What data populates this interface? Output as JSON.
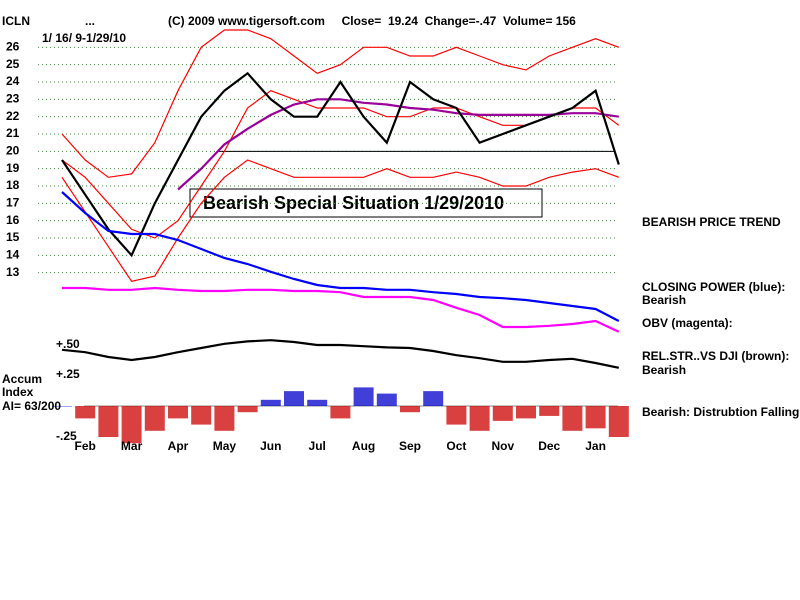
{
  "header": {
    "symbol": "ICLN",
    "dots": "...",
    "info": "(C) 2009 www.tigersoft.com     Close=  19.24  Change=-.47  Volume= 156",
    "date_range": "1/ 16/ 9-1/29/10"
  },
  "chart_data": [
    {
      "type": "line",
      "series": [
        {
          "color": "#ff0000",
          "values": [
            21,
            19.5,
            18.5,
            18.7,
            20.5,
            23.5,
            26,
            27,
            27,
            26.5,
            25.5,
            24.5,
            25,
            26,
            26,
            25.5,
            25.5,
            26,
            25.5,
            25,
            24.7,
            25.5,
            26,
            26.5,
            26
          ]
        },
        {
          "color": "#ff0000",
          "values": [
            18.5,
            16.5,
            14.5,
            12.5,
            12.8,
            15,
            17,
            18.5,
            19.5,
            19,
            18.5,
            18.5,
            18.5,
            18.5,
            19,
            18.5,
            18.5,
            18.8,
            18.5,
            18,
            18,
            18.5,
            18.8,
            19,
            18.5
          ]
        },
        {
          "color": "#ff0000",
          "values": [
            19.5,
            18.5,
            17,
            15.5,
            15,
            16,
            18,
            20,
            22.5,
            23.5,
            23,
            22.5,
            22.5,
            22.5,
            22,
            22,
            22.5,
            22.5,
            22,
            21.5,
            21.5,
            22,
            22.5,
            22.5,
            21.5
          ]
        },
        {
          "color": "#990099",
          "values": [
            null,
            null,
            null,
            null,
            null,
            17.8,
            19,
            20.4,
            21.3,
            22.1,
            22.7,
            23,
            23,
            22.8,
            22.7,
            22.5,
            22.4,
            22.2,
            22.1,
            22.1,
            22.1,
            22.1,
            22.2,
            22.2,
            22
          ]
        },
        {
          "color": "#000000",
          "values": [
            19.5,
            17.5,
            15.5,
            14,
            17,
            19.5,
            22,
            23.5,
            24.5,
            23,
            22,
            22,
            24,
            22,
            20.5,
            24,
            23,
            22.5,
            20.5,
            21,
            21.5,
            22,
            22.5,
            23.5,
            19.24
          ]
        }
      ],
      "ylim": [
        12,
        27
      ],
      "yticks": [
        13,
        14,
        15,
        16,
        17,
        18,
        19,
        20,
        21,
        22,
        23,
        24,
        25,
        26
      ],
      "grid": true,
      "support": 20,
      "annotation": "Bearish Special Situation 1/29/2010",
      "note": "BEARISH PRICE TREND"
    },
    {
      "type": "line",
      "series": [
        {
          "color": "#0000ff",
          "values": [
            3.05,
            2.7,
            2.4,
            2.35,
            2.35,
            2.25,
            2.1,
            1.95,
            1.85,
            1.72,
            1.6,
            1.5,
            1.45,
            1.45,
            1.42,
            1.42,
            1.38,
            1.35,
            1.3,
            1.28,
            1.25,
            1.2,
            1.15,
            1.1,
            0.9
          ]
        },
        {
          "color": "#ff00ff",
          "values": [
            1.45,
            1.45,
            1.42,
            1.42,
            1.45,
            1.42,
            1.4,
            1.4,
            1.42,
            1.42,
            1.4,
            1.4,
            1.38,
            1.3,
            1.3,
            1.3,
            1.25,
            1.12,
            1.0,
            0.8,
            0.8,
            0.82,
            0.85,
            0.9,
            0.72
          ]
        },
        {
          "color": "#000000",
          "values": [
            0.42,
            0.38,
            0.3,
            0.25,
            0.3,
            0.38,
            0.45,
            0.52,
            0.56,
            0.58,
            0.55,
            0.5,
            0.5,
            0.48,
            0.46,
            0.45,
            0.4,
            0.33,
            0.28,
            0.22,
            0.22,
            0.25,
            0.27,
            0.2,
            0.12
          ]
        }
      ],
      "ylim": [
        0,
        3.5
      ],
      "yticks": [
        {
          "value": 0.5,
          "label": "+.50"
        }
      ],
      "notes": [
        "CLOSING POWER (blue):",
        "Bearish",
        "OBV (magenta):",
        "REL.STR..VS DJI (brown):",
        "Bearish"
      ]
    },
    {
      "type": "bar",
      "categories": [
        null,
        "Feb",
        null,
        "Mar",
        null,
        "Apr",
        null,
        "May",
        null,
        "Jun",
        null,
        "Jul",
        null,
        "Aug",
        null,
        "Sep",
        null,
        "Oct",
        null,
        "Nov",
        null,
        "Dec",
        null,
        "Jan",
        null
      ],
      "values": [
        0,
        -0.1,
        -0.25,
        -0.3,
        -0.2,
        -0.1,
        -0.15,
        -0.2,
        -0.05,
        0.05,
        0.12,
        0.05,
        -0.1,
        0.15,
        0.1,
        -0.05,
        0.12,
        -0.15,
        -0.2,
        -0.12,
        -0.1,
        -0.08,
        -0.2,
        -0.18,
        -0.25
      ],
      "positive_color": "#0000cc",
      "negative_color": "#cc0000",
      "ylim": [
        -0.45,
        0.4
      ],
      "yticks": [
        {
          "value": 0.25,
          "label": "+.25"
        },
        {
          "value": -0.25,
          "label": "-.25"
        }
      ],
      "labels": [
        "Accum",
        "Index",
        "AI= 63/200"
      ],
      "note": "Bearish: Distrubtion Falling."
    }
  ]
}
